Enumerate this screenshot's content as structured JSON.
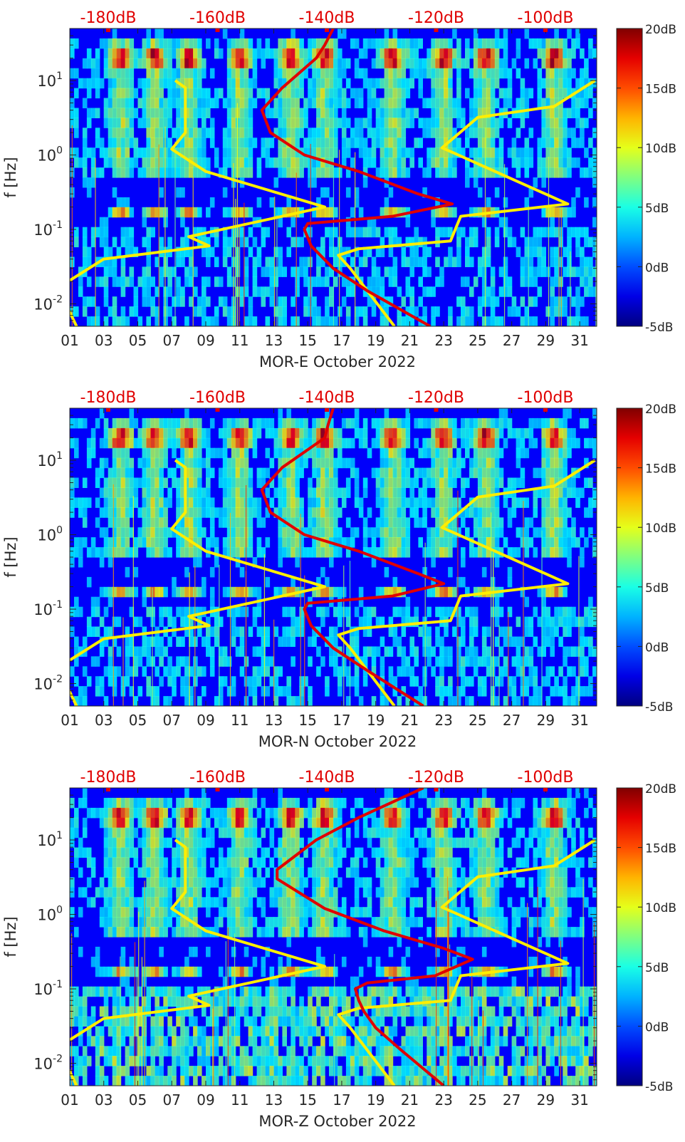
{
  "chart_data": [
    {
      "type": "heatmap",
      "xlabel": "MOR-E October 2022",
      "ylabel": "f [Hz]",
      "x_tick_labels": [
        "01",
        "03",
        "05",
        "07",
        "09",
        "11",
        "13",
        "15",
        "17",
        "19",
        "21",
        "23",
        "25",
        "27",
        "29",
        "31"
      ],
      "xlim": [
        1,
        32
      ],
      "y_scale": "log",
      "ylim": [
        0.005,
        50
      ],
      "y_ticks": [
        0.01,
        0.1,
        1,
        10
      ],
      "y_tick_labels": [
        "10^-2",
        "10^-1",
        "10^0",
        "10^1"
      ],
      "top_axis_tick_labels": [
        "-180dB",
        "-160dB",
        "-140dB",
        "-120dB",
        "-100dB"
      ],
      "colorbar": {
        "min": -5,
        "max": 20,
        "ticks": [
          20,
          15,
          10,
          5,
          0,
          -5
        ],
        "tick_labels": [
          "20dB",
          "15dB",
          "10dB",
          "5dB",
          "0dB",
          "-5dB"
        ],
        "colormap": "jet"
      },
      "series": [
        {
          "color": "#ffee00",
          "points": [
            [
              7.2,
              10
            ],
            [
              7.8,
              8
            ],
            [
              7.8,
              2
            ],
            [
              7.0,
              1.2
            ],
            [
              9.0,
              0.6
            ],
            [
              16.0,
              0.2
            ],
            [
              8.0,
              0.08
            ],
            [
              9.2,
              0.06
            ],
            [
              3.0,
              0.04
            ],
            [
              0.9,
              0.02
            ],
            [
              0.6,
              0.012
            ],
            [
              1.4,
              0.005
            ]
          ]
        },
        {
          "color": "#ffee00",
          "points": [
            [
              31.9,
              10
            ],
            [
              29.5,
              4.5
            ],
            [
              25.0,
              3.2
            ],
            [
              22.9,
              1.25
            ],
            [
              30.3,
              0.22
            ],
            [
              24.0,
              0.15
            ],
            [
              23.4,
              0.07
            ],
            [
              18.0,
              0.055
            ],
            [
              16.8,
              0.045
            ],
            [
              17.5,
              0.03
            ],
            [
              20.1,
              0.005
            ]
          ]
        },
        {
          "color": "#e00000",
          "points": [
            [
              16.5,
              50
            ],
            [
              16.0,
              30
            ],
            [
              15.5,
              20
            ],
            [
              13.5,
              8
            ],
            [
              12.3,
              4
            ],
            [
              12.8,
              2
            ],
            [
              14.8,
              1
            ],
            [
              18.0,
              0.6
            ],
            [
              21.5,
              0.3
            ],
            [
              23.5,
              0.22
            ],
            [
              20.0,
              0.15
            ],
            [
              15.0,
              0.12
            ],
            [
              14.8,
              0.1
            ],
            [
              15.2,
              0.06
            ],
            [
              16.5,
              0.03
            ],
            [
              18.5,
              0.015
            ],
            [
              22.2,
              0.005
            ]
          ]
        }
      ]
    },
    {
      "type": "heatmap",
      "xlabel": "MOR-N October 2022",
      "ylabel": "f [Hz]",
      "x_tick_labels": [
        "01",
        "03",
        "05",
        "07",
        "09",
        "11",
        "13",
        "15",
        "17",
        "19",
        "21",
        "23",
        "25",
        "27",
        "29",
        "31"
      ],
      "xlim": [
        1,
        32
      ],
      "y_scale": "log",
      "ylim": [
        0.005,
        50
      ],
      "y_ticks": [
        0.01,
        0.1,
        1,
        10
      ],
      "y_tick_labels": [
        "10^-2",
        "10^-1",
        "10^0",
        "10^1"
      ],
      "top_axis_tick_labels": [
        "-180dB",
        "-160dB",
        "-140dB",
        "-120dB",
        "-100dB"
      ],
      "colorbar": {
        "min": -5,
        "max": 20,
        "ticks": [
          20,
          15,
          10,
          5,
          0,
          -5
        ],
        "tick_labels": [
          "20dB",
          "15dB",
          "10dB",
          "5dB",
          "0dB",
          "-5dB"
        ],
        "colormap": "jet"
      },
      "series": [
        {
          "color": "#ffee00",
          "points": [
            [
              7.2,
              10
            ],
            [
              7.8,
              8
            ],
            [
              7.8,
              2
            ],
            [
              7.0,
              1.2
            ],
            [
              9.0,
              0.6
            ],
            [
              16.0,
              0.2
            ],
            [
              8.0,
              0.08
            ],
            [
              9.2,
              0.06
            ],
            [
              3.0,
              0.04
            ],
            [
              0.9,
              0.02
            ],
            [
              0.6,
              0.012
            ],
            [
              1.4,
              0.005
            ]
          ]
        },
        {
          "color": "#ffee00",
          "points": [
            [
              31.9,
              10
            ],
            [
              29.5,
              4.5
            ],
            [
              25.0,
              3.2
            ],
            [
              22.9,
              1.25
            ],
            [
              30.3,
              0.22
            ],
            [
              24.0,
              0.15
            ],
            [
              23.4,
              0.07
            ],
            [
              18.0,
              0.055
            ],
            [
              16.8,
              0.045
            ],
            [
              17.5,
              0.03
            ],
            [
              20.1,
              0.005
            ]
          ]
        },
        {
          "color": "#e00000",
          "points": [
            [
              16.5,
              50
            ],
            [
              16.2,
              30
            ],
            [
              16.0,
              20
            ],
            [
              13.5,
              8
            ],
            [
              12.3,
              4
            ],
            [
              12.8,
              2
            ],
            [
              14.8,
              1
            ],
            [
              18.0,
              0.6
            ],
            [
              21.5,
              0.3
            ],
            [
              23.0,
              0.22
            ],
            [
              20.0,
              0.15
            ],
            [
              15.0,
              0.12
            ],
            [
              14.8,
              0.1
            ],
            [
              15.2,
              0.06
            ],
            [
              16.5,
              0.03
            ],
            [
              18.5,
              0.015
            ],
            [
              21.8,
              0.005
            ]
          ]
        }
      ]
    },
    {
      "type": "heatmap",
      "xlabel": "MOR-Z October 2022",
      "ylabel": "f [Hz]",
      "x_tick_labels": [
        "01",
        "03",
        "05",
        "07",
        "09",
        "11",
        "13",
        "15",
        "17",
        "19",
        "21",
        "23",
        "25",
        "27",
        "29",
        "31"
      ],
      "xlim": [
        1,
        32
      ],
      "y_scale": "log",
      "ylim": [
        0.005,
        50
      ],
      "y_ticks": [
        0.01,
        0.1,
        1,
        10
      ],
      "y_tick_labels": [
        "10^-2",
        "10^-1",
        "10^0",
        "10^1"
      ],
      "top_axis_tick_labels": [
        "-180dB",
        "-160dB",
        "-140dB",
        "-120dB",
        "-100dB"
      ],
      "colorbar": {
        "min": -5,
        "max": 20,
        "ticks": [
          20,
          15,
          10,
          5,
          0,
          -5
        ],
        "tick_labels": [
          "20dB",
          "15dB",
          "10dB",
          "5dB",
          "0dB",
          "-5dB"
        ],
        "colormap": "jet"
      },
      "series": [
        {
          "color": "#ffee00",
          "points": [
            [
              7.2,
              10
            ],
            [
              7.8,
              8
            ],
            [
              7.8,
              2
            ],
            [
              7.0,
              1.2
            ],
            [
              9.0,
              0.6
            ],
            [
              16.0,
              0.2
            ],
            [
              8.0,
              0.08
            ],
            [
              9.2,
              0.06
            ],
            [
              3.0,
              0.04
            ],
            [
              0.9,
              0.02
            ],
            [
              0.6,
              0.012
            ],
            [
              1.4,
              0.005
            ]
          ]
        },
        {
          "color": "#ffee00",
          "points": [
            [
              31.9,
              10
            ],
            [
              29.5,
              4.5
            ],
            [
              25.0,
              3.2
            ],
            [
              22.9,
              1.25
            ],
            [
              30.3,
              0.22
            ],
            [
              24.0,
              0.15
            ],
            [
              23.4,
              0.07
            ],
            [
              18.0,
              0.055
            ],
            [
              16.8,
              0.045
            ],
            [
              17.5,
              0.03
            ],
            [
              20.1,
              0.005
            ]
          ]
        },
        {
          "color": "#e00000",
          "points": [
            [
              21.8,
              50
            ],
            [
              18.0,
              20
            ],
            [
              15.5,
              10
            ],
            [
              13.2,
              4
            ],
            [
              13.2,
              3
            ],
            [
              16.0,
              1.2
            ],
            [
              19.5,
              0.6
            ],
            [
              23.0,
              0.35
            ],
            [
              24.7,
              0.25
            ],
            [
              22.5,
              0.15
            ],
            [
              18.5,
              0.12
            ],
            [
              17.8,
              0.1
            ],
            [
              18.0,
              0.07
            ],
            [
              18.3,
              0.05
            ],
            [
              19.0,
              0.03
            ],
            [
              20.5,
              0.015
            ],
            [
              23.0,
              0.005
            ]
          ]
        }
      ]
    }
  ]
}
